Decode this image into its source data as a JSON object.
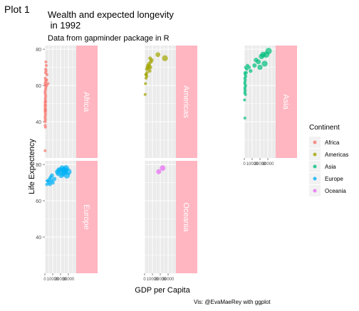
{
  "figure_label": "Plot 1",
  "chart_data": {
    "type": "scatter",
    "title": "Wealth and expected longevity\n in 1992",
    "subtitle": "Data from gapminder package in R",
    "xlabel": "GDP per Capita",
    "ylabel": "Life Expectency",
    "caption": "Vis: @EvaMaeRey with ggplot",
    "ylim": [
      20,
      82
    ],
    "yticks": [
      40,
      60,
      80
    ],
    "xlim": [
      0,
      40000
    ],
    "xticks": [
      0,
      10000,
      20000,
      30000
    ],
    "xtick_labels": [
      "0",
      "10000",
      "20000",
      "30000"
    ],
    "grid": true,
    "legend": {
      "title": "Continent",
      "placement": "right",
      "entries": [
        {
          "name": "Africa",
          "color": "#F8766D"
        },
        {
          "name": "Americas",
          "color": "#A3A500"
        },
        {
          "name": "Asia",
          "color": "#00BF7D"
        },
        {
          "name": "Europe",
          "color": "#00B0F6"
        },
        {
          "name": "Oceania",
          "color": "#E76BF3"
        }
      ]
    },
    "strip_fill": "#FFB6C1",
    "panel_fill": "#EBEBEB",
    "facets": [
      {
        "label": "Africa",
        "color": "#F8766D",
        "points": [
          [
            1300,
            73
          ],
          [
            1700,
            71
          ],
          [
            1000,
            69
          ],
          [
            1500,
            68
          ],
          [
            900,
            67
          ],
          [
            2600,
            66
          ],
          [
            400,
            64
          ],
          [
            2200,
            63
          ],
          [
            1400,
            63
          ],
          [
            700,
            62
          ],
          [
            3700,
            61
          ],
          [
            300,
            61
          ],
          [
            800,
            60
          ],
          [
            2000,
            60
          ],
          [
            1200,
            59
          ],
          [
            900,
            58
          ],
          [
            500,
            57
          ],
          [
            300,
            56
          ],
          [
            600,
            55
          ],
          [
            1100,
            54
          ],
          [
            400,
            53
          ],
          [
            700,
            52
          ],
          [
            300,
            51
          ],
          [
            900,
            51
          ],
          [
            500,
            50
          ],
          [
            300,
            49
          ],
          [
            700,
            49
          ],
          [
            400,
            48
          ],
          [
            500,
            47
          ],
          [
            600,
            47
          ],
          [
            300,
            46
          ],
          [
            900,
            46
          ],
          [
            500,
            45
          ],
          [
            700,
            44
          ],
          [
            400,
            43
          ],
          [
            300,
            42
          ],
          [
            600,
            41
          ],
          [
            500,
            40
          ],
          [
            400,
            38
          ],
          [
            700,
            37
          ],
          [
            300,
            24
          ]
        ]
      },
      {
        "label": "Americas",
        "color": "#A3A500",
        "points": [
          [
            17000,
            77
          ],
          [
            26000,
            75
          ],
          [
            7000,
            75
          ],
          [
            9000,
            74
          ],
          [
            8000,
            73
          ],
          [
            5500,
            72
          ],
          [
            4000,
            71
          ],
          [
            6000,
            71
          ],
          [
            3500,
            70
          ],
          [
            5000,
            70
          ],
          [
            7500,
            70
          ],
          [
            2500,
            69
          ],
          [
            4500,
            69
          ],
          [
            6500,
            68
          ],
          [
            3000,
            67
          ],
          [
            2000,
            66
          ],
          [
            1500,
            66
          ],
          [
            2800,
            65
          ],
          [
            1800,
            64
          ],
          [
            1100,
            61
          ],
          [
            700,
            55
          ]
        ]
      },
      {
        "label": "Asia",
        "color": "#00BF7D",
        "points": [
          [
            31000,
            79
          ],
          [
            24000,
            77
          ],
          [
            28000,
            77
          ],
          [
            22000,
            76
          ],
          [
            15000,
            74
          ],
          [
            18000,
            73
          ],
          [
            26000,
            72
          ],
          [
            13000,
            71
          ],
          [
            20000,
            70
          ],
          [
            4000,
            71
          ],
          [
            6000,
            70
          ],
          [
            1500,
            70
          ],
          [
            3000,
            69
          ],
          [
            8000,
            68
          ],
          [
            2500,
            67
          ],
          [
            700,
            67
          ],
          [
            1000,
            66
          ],
          [
            1800,
            65
          ],
          [
            600,
            64
          ],
          [
            1200,
            63
          ],
          [
            800,
            62
          ],
          [
            500,
            61
          ],
          [
            1600,
            60
          ],
          [
            900,
            59
          ],
          [
            700,
            58
          ],
          [
            1100,
            57
          ],
          [
            600,
            56
          ],
          [
            1400,
            55
          ],
          [
            300,
            52
          ],
          [
            700,
            42
          ]
        ]
      },
      {
        "label": "Europe",
        "color": "#00B0F6",
        "points": [
          [
            27000,
            78
          ],
          [
            24000,
            77
          ],
          [
            22000,
            78
          ],
          [
            25000,
            76
          ],
          [
            20000,
            77
          ],
          [
            18000,
            77
          ],
          [
            26000,
            77
          ],
          [
            30000,
            76
          ],
          [
            17000,
            75
          ],
          [
            23000,
            75
          ],
          [
            28000,
            74
          ],
          [
            21000,
            74
          ],
          [
            16000,
            76
          ],
          [
            9000,
            74
          ],
          [
            7500,
            73
          ],
          [
            6000,
            72
          ],
          [
            12000,
            72
          ],
          [
            8000,
            71
          ],
          [
            4000,
            71
          ],
          [
            3000,
            71
          ],
          [
            2500,
            69
          ],
          [
            10000,
            70
          ],
          [
            5000,
            70
          ],
          [
            6500,
            69
          ]
        ]
      },
      {
        "label": "Oceania",
        "color": "#E76BF3",
        "points": [
          [
            23000,
            78
          ],
          [
            18000,
            76
          ]
        ]
      }
    ]
  }
}
